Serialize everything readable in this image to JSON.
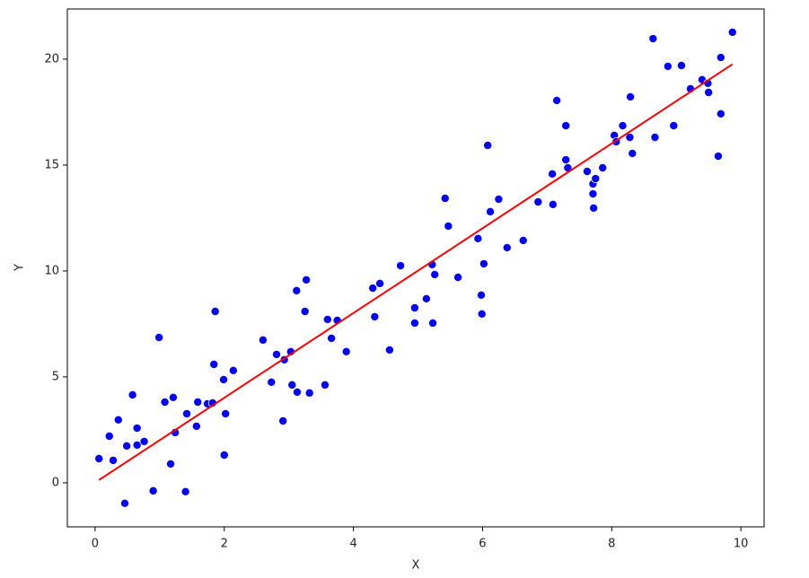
{
  "chart_data": {
    "type": "scatter",
    "x_label": "X",
    "y_label": "Y",
    "xlim": [
      -0.43,
      10.36
    ],
    "ylim": [
      -2.08,
      22.37
    ],
    "xticks": [
      0,
      2,
      4,
      6,
      8,
      10
    ],
    "yticks": [
      0,
      5,
      10,
      15,
      20
    ],
    "grid": false,
    "points": {
      "color": "#0000ff",
      "x": [
        0.06,
        0.22,
        0.28,
        0.36,
        0.46,
        0.49,
        0.58,
        0.65,
        0.65,
        0.76,
        0.9,
        0.99,
        1.08,
        1.17,
        1.21,
        1.24,
        1.4,
        1.42,
        1.57,
        1.59,
        1.74,
        1.82,
        1.84,
        1.86,
        1.99,
        2.0,
        2.02,
        2.14,
        2.6,
        2.73,
        2.81,
        2.91,
        2.93,
        3.03,
        3.05,
        3.12,
        3.13,
        3.25,
        3.27,
        3.32,
        3.56,
        3.6,
        3.66,
        3.75,
        3.89,
        4.3,
        4.33,
        4.41,
        4.56,
        4.73,
        4.95,
        4.95,
        5.13,
        5.22,
        5.23,
        5.26,
        5.42,
        5.47,
        5.62,
        5.93,
        5.98,
        5.99,
        6.02,
        6.08,
        6.12,
        6.25,
        6.38,
        6.63,
        6.86,
        7.08,
        7.09,
        7.15,
        7.29,
        7.29,
        7.32,
        7.62,
        7.71,
        7.75,
        7.71,
        7.72,
        7.86,
        8.04,
        8.07,
        8.17,
        8.29,
        8.28,
        8.32,
        8.64,
        8.67,
        8.87,
        8.96,
        9.08,
        9.22,
        9.4,
        9.49,
        9.5,
        9.65,
        9.69,
        9.69,
        9.87
      ],
      "y": [
        1.14,
        2.2,
        1.06,
        2.97,
        -0.97,
        1.74,
        4.15,
        2.58,
        1.78,
        1.95,
        -0.38,
        6.86,
        3.81,
        0.89,
        4.03,
        2.37,
        -0.42,
        3.26,
        2.67,
        3.81,
        3.73,
        3.77,
        5.59,
        8.09,
        4.87,
        1.31,
        3.26,
        5.3,
        6.74,
        4.75,
        6.06,
        2.92,
        5.81,
        6.19,
        4.62,
        9.07,
        4.28,
        8.09,
        9.58,
        4.24,
        4.62,
        7.71,
        6.82,
        7.67,
        6.19,
        9.19,
        7.84,
        9.41,
        6.27,
        10.25,
        8.26,
        7.54,
        8.69,
        10.3,
        7.54,
        9.83,
        13.43,
        12.12,
        9.7,
        11.53,
        8.86,
        7.97,
        10.34,
        15.93,
        12.8,
        13.39,
        11.1,
        11.44,
        13.26,
        14.58,
        13.14,
        18.05,
        16.86,
        15.25,
        14.87,
        14.7,
        14.11,
        14.36,
        13.64,
        12.97,
        14.87,
        16.4,
        16.1,
        16.86,
        18.22,
        16.31,
        15.55,
        20.97,
        16.31,
        19.66,
        16.86,
        19.7,
        18.6,
        19.03,
        18.86,
        18.43,
        15.42,
        20.08,
        17.42,
        21.27
      ]
    },
    "fit_line": {
      "color": "#ff0000",
      "x": [
        0.06,
        9.87
      ],
      "y": [
        0.13,
        19.76
      ]
    }
  }
}
